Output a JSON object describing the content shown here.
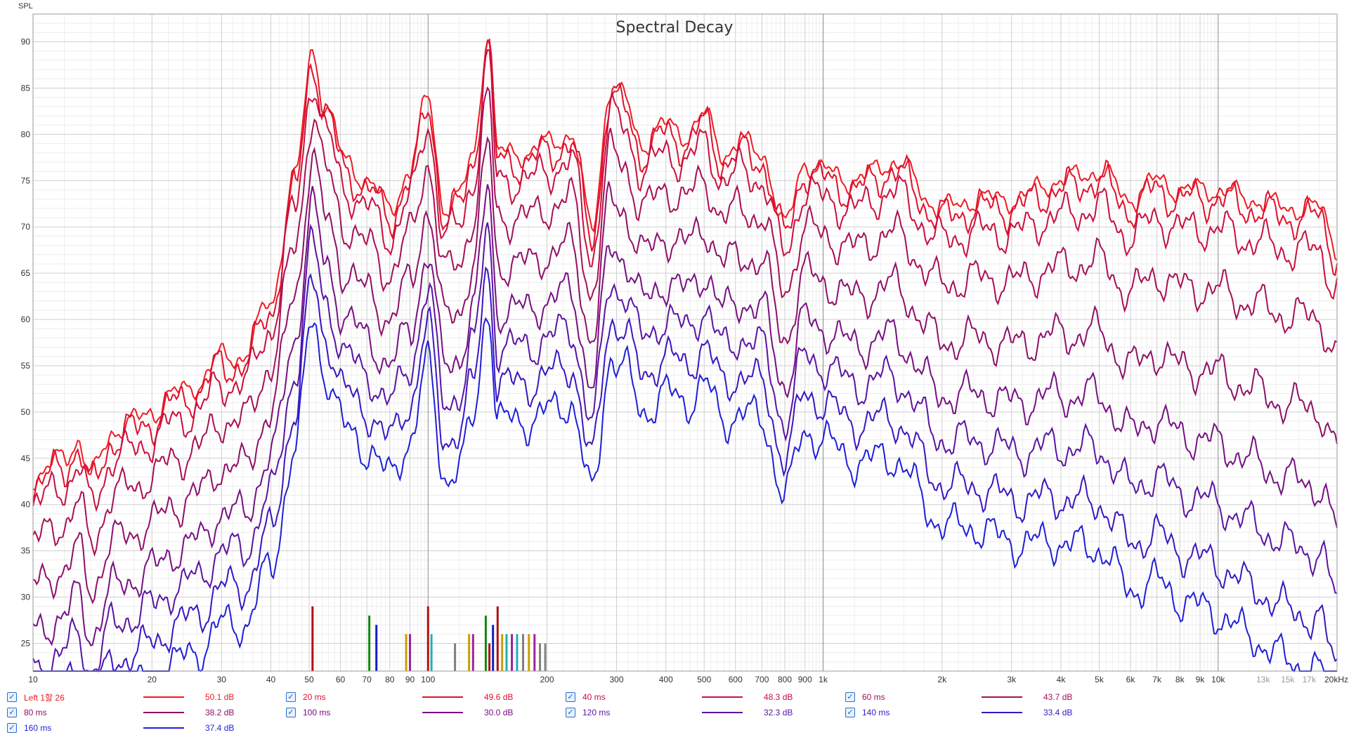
{
  "chart_data": {
    "type": "line",
    "title": "Spectral Decay",
    "ylabel": "SPL",
    "xlabel": "",
    "xscale": "log",
    "xlim": [
      10,
      20000
    ],
    "ylim": [
      22,
      93
    ],
    "y_ticks": [
      25,
      30,
      35,
      40,
      45,
      50,
      55,
      60,
      65,
      70,
      75,
      80,
      85,
      90
    ],
    "y_tick_labels": [
      "25",
      "30",
      "35",
      "40",
      "45",
      "50",
      "55",
      "60",
      "65",
      "70",
      "75",
      "80",
      "85",
      "90"
    ],
    "x_ticks": [
      10,
      20,
      30,
      40,
      50,
      60,
      70,
      80,
      90,
      100,
      200,
      300,
      400,
      500,
      600,
      700,
      800,
      900,
      1000,
      2000,
      3000,
      4000,
      5000,
      6000,
      7000,
      8000,
      9000,
      10000,
      13000,
      15000,
      17000,
      20000
    ],
    "x_tick_labels": [
      "10",
      "20",
      "30",
      "40",
      "50",
      "60",
      "70",
      "80",
      "90",
      "100",
      "200",
      "300",
      "400",
      "500",
      "600",
      "700",
      "800",
      "900",
      "1k",
      "2k",
      "3k",
      "4k",
      "5k",
      "6k",
      "7k",
      "8k",
      "9k",
      "10k",
      "13k",
      "15k",
      "17k",
      "20kHz"
    ],
    "x_tick_gray": [
      false,
      false,
      false,
      false,
      false,
      false,
      false,
      false,
      false,
      false,
      false,
      false,
      false,
      false,
      false,
      false,
      false,
      false,
      false,
      false,
      false,
      false,
      false,
      false,
      false,
      false,
      false,
      false,
      true,
      true,
      true,
      false
    ],
    "x_major": [
      100,
      1000,
      10000
    ],
    "series": [
      {
        "name": "Left 1할 26",
        "color": "#ee1c24",
        "value": "50.1 dB",
        "offset": 0
      },
      {
        "name": "20 ms",
        "color": "#e0102a",
        "value": "49.6 dB",
        "offset": -1
      },
      {
        "name": "40 ms",
        "color": "#c8103e",
        "value": "48.3 dB",
        "offset": -3
      },
      {
        "name": "60 ms",
        "color": "#a80f55",
        "value": "43.7 dB",
        "offset": -7
      },
      {
        "name": "80 ms",
        "color": "#8e1068",
        "value": "38.2 dB",
        "offset": -12
      },
      {
        "name": "100 ms",
        "color": "#761083",
        "value": "30.0 dB",
        "offset": -17
      },
      {
        "name": "120 ms",
        "color": "#5a14a2",
        "value": "32.3 dB",
        "offset": -21
      },
      {
        "name": "140 ms",
        "color": "#3a16c0",
        "value": "33.4 dB",
        "offset": -25
      },
      {
        "name": "160 ms",
        "color": "#1f1fd8",
        "value": "37.4 dB",
        "offset": -29
      }
    ],
    "envelope": {
      "x": [
        10,
        12,
        13,
        14,
        16,
        18,
        20,
        23,
        26,
        30,
        34,
        40,
        46,
        51,
        55,
        62,
        70,
        80,
        90,
        100,
        110,
        120,
        130,
        142,
        150,
        160,
        180,
        200,
        230,
        260,
        290,
        310,
        350,
        400,
        450,
        500,
        560,
        620,
        700,
        800,
        900,
        1000,
        1200,
        1500,
        2000,
        2500,
        3000,
        4000,
        5000,
        6000,
        7000,
        8000,
        10000,
        12000,
        15000,
        18000,
        20000
      ],
      "y": [
        43,
        45,
        47,
        43,
        48,
        49,
        50,
        52,
        53,
        56,
        56,
        62,
        75,
        89,
        83,
        77,
        75,
        72,
        76,
        84,
        72,
        73,
        78,
        91,
        78,
        78,
        78,
        79,
        80,
        70,
        85,
        84,
        79,
        81,
        80,
        82,
        78,
        79,
        78,
        70,
        77,
        76,
        75,
        77,
        72,
        73,
        73,
        75,
        76,
        73,
        75,
        74,
        74,
        73,
        72,
        72,
        68
      ]
    },
    "hf_rolloff": [
      {
        "offset": 0,
        "db_per_decade": 0
      },
      {
        "offset": -1,
        "db_per_decade": 0
      },
      {
        "offset": -3,
        "db_per_decade": 1
      },
      {
        "offset": -7,
        "db_per_decade": 3
      },
      {
        "offset": -12,
        "db_per_decade": 6
      },
      {
        "offset": -17,
        "db_per_decade": 8
      },
      {
        "offset": -21,
        "db_per_decade": 10
      },
      {
        "offset": -25,
        "db_per_decade": 12
      },
      {
        "offset": -29,
        "db_per_decade": 13
      }
    ],
    "markers": [
      {
        "x": 51,
        "y": 29,
        "color": "#b01010"
      },
      {
        "x": 71,
        "y": 28,
        "color": "#118811"
      },
      {
        "x": 74,
        "y": 27,
        "color": "#1020c0"
      },
      {
        "x": 88,
        "y": 26,
        "color": "#c8a000"
      },
      {
        "x": 90,
        "y": 26,
        "color": "#a020a0"
      },
      {
        "x": 100,
        "y": 29,
        "color": "#b01010"
      },
      {
        "x": 102,
        "y": 26,
        "color": "#20b0b0"
      },
      {
        "x": 117,
        "y": 25,
        "color": "#808080"
      },
      {
        "x": 127,
        "y": 26,
        "color": "#c8a000"
      },
      {
        "x": 130,
        "y": 26,
        "color": "#a020a0"
      },
      {
        "x": 140,
        "y": 28,
        "color": "#118811"
      },
      {
        "x": 143,
        "y": 25,
        "color": "#b01010"
      },
      {
        "x": 146,
        "y": 27,
        "color": "#1020c0"
      },
      {
        "x": 150,
        "y": 29,
        "color": "#b01010"
      },
      {
        "x": 154,
        "y": 26,
        "color": "#c8a000"
      },
      {
        "x": 158,
        "y": 26,
        "color": "#20b0b0"
      },
      {
        "x": 163,
        "y": 26,
        "color": "#a020a0"
      },
      {
        "x": 168,
        "y": 26,
        "color": "#20b0b0"
      },
      {
        "x": 174,
        "y": 26,
        "color": "#808080"
      },
      {
        "x": 180,
        "y": 26,
        "color": "#c8a000"
      },
      {
        "x": 186,
        "y": 26,
        "color": "#a020a0"
      },
      {
        "x": 192,
        "y": 25,
        "color": "#808080"
      },
      {
        "x": 198,
        "y": 25,
        "color": "#808080"
      }
    ]
  },
  "legend": [
    {
      "label": "Left 1할 26",
      "color": "#ee1c24",
      "value": "50.1 dB",
      "checked": "✓"
    },
    {
      "label": "20 ms",
      "color": "#e0102a",
      "value": "49.6 dB",
      "checked": "✓"
    },
    {
      "label": "40 ms",
      "color": "#c8103e",
      "value": "48.3 dB",
      "checked": "✓"
    },
    {
      "label": "60 ms",
      "color": "#a80f55",
      "value": "43.7 dB",
      "checked": "✓"
    },
    {
      "label": "80 ms",
      "color": "#8e1068",
      "value": "38.2 dB",
      "checked": "✓"
    },
    {
      "label": "100 ms",
      "color": "#761083",
      "value": "30.0 dB",
      "checked": "✓"
    },
    {
      "label": "120 ms",
      "color": "#5a14a2",
      "value": "32.3 dB",
      "checked": "✓"
    },
    {
      "label": "140 ms",
      "color": "#3a16c0",
      "value": "33.4 dB",
      "checked": "✓"
    },
    {
      "label": "160 ms",
      "color": "#1f1fd8",
      "value": "37.4 dB",
      "checked": "✓"
    }
  ]
}
